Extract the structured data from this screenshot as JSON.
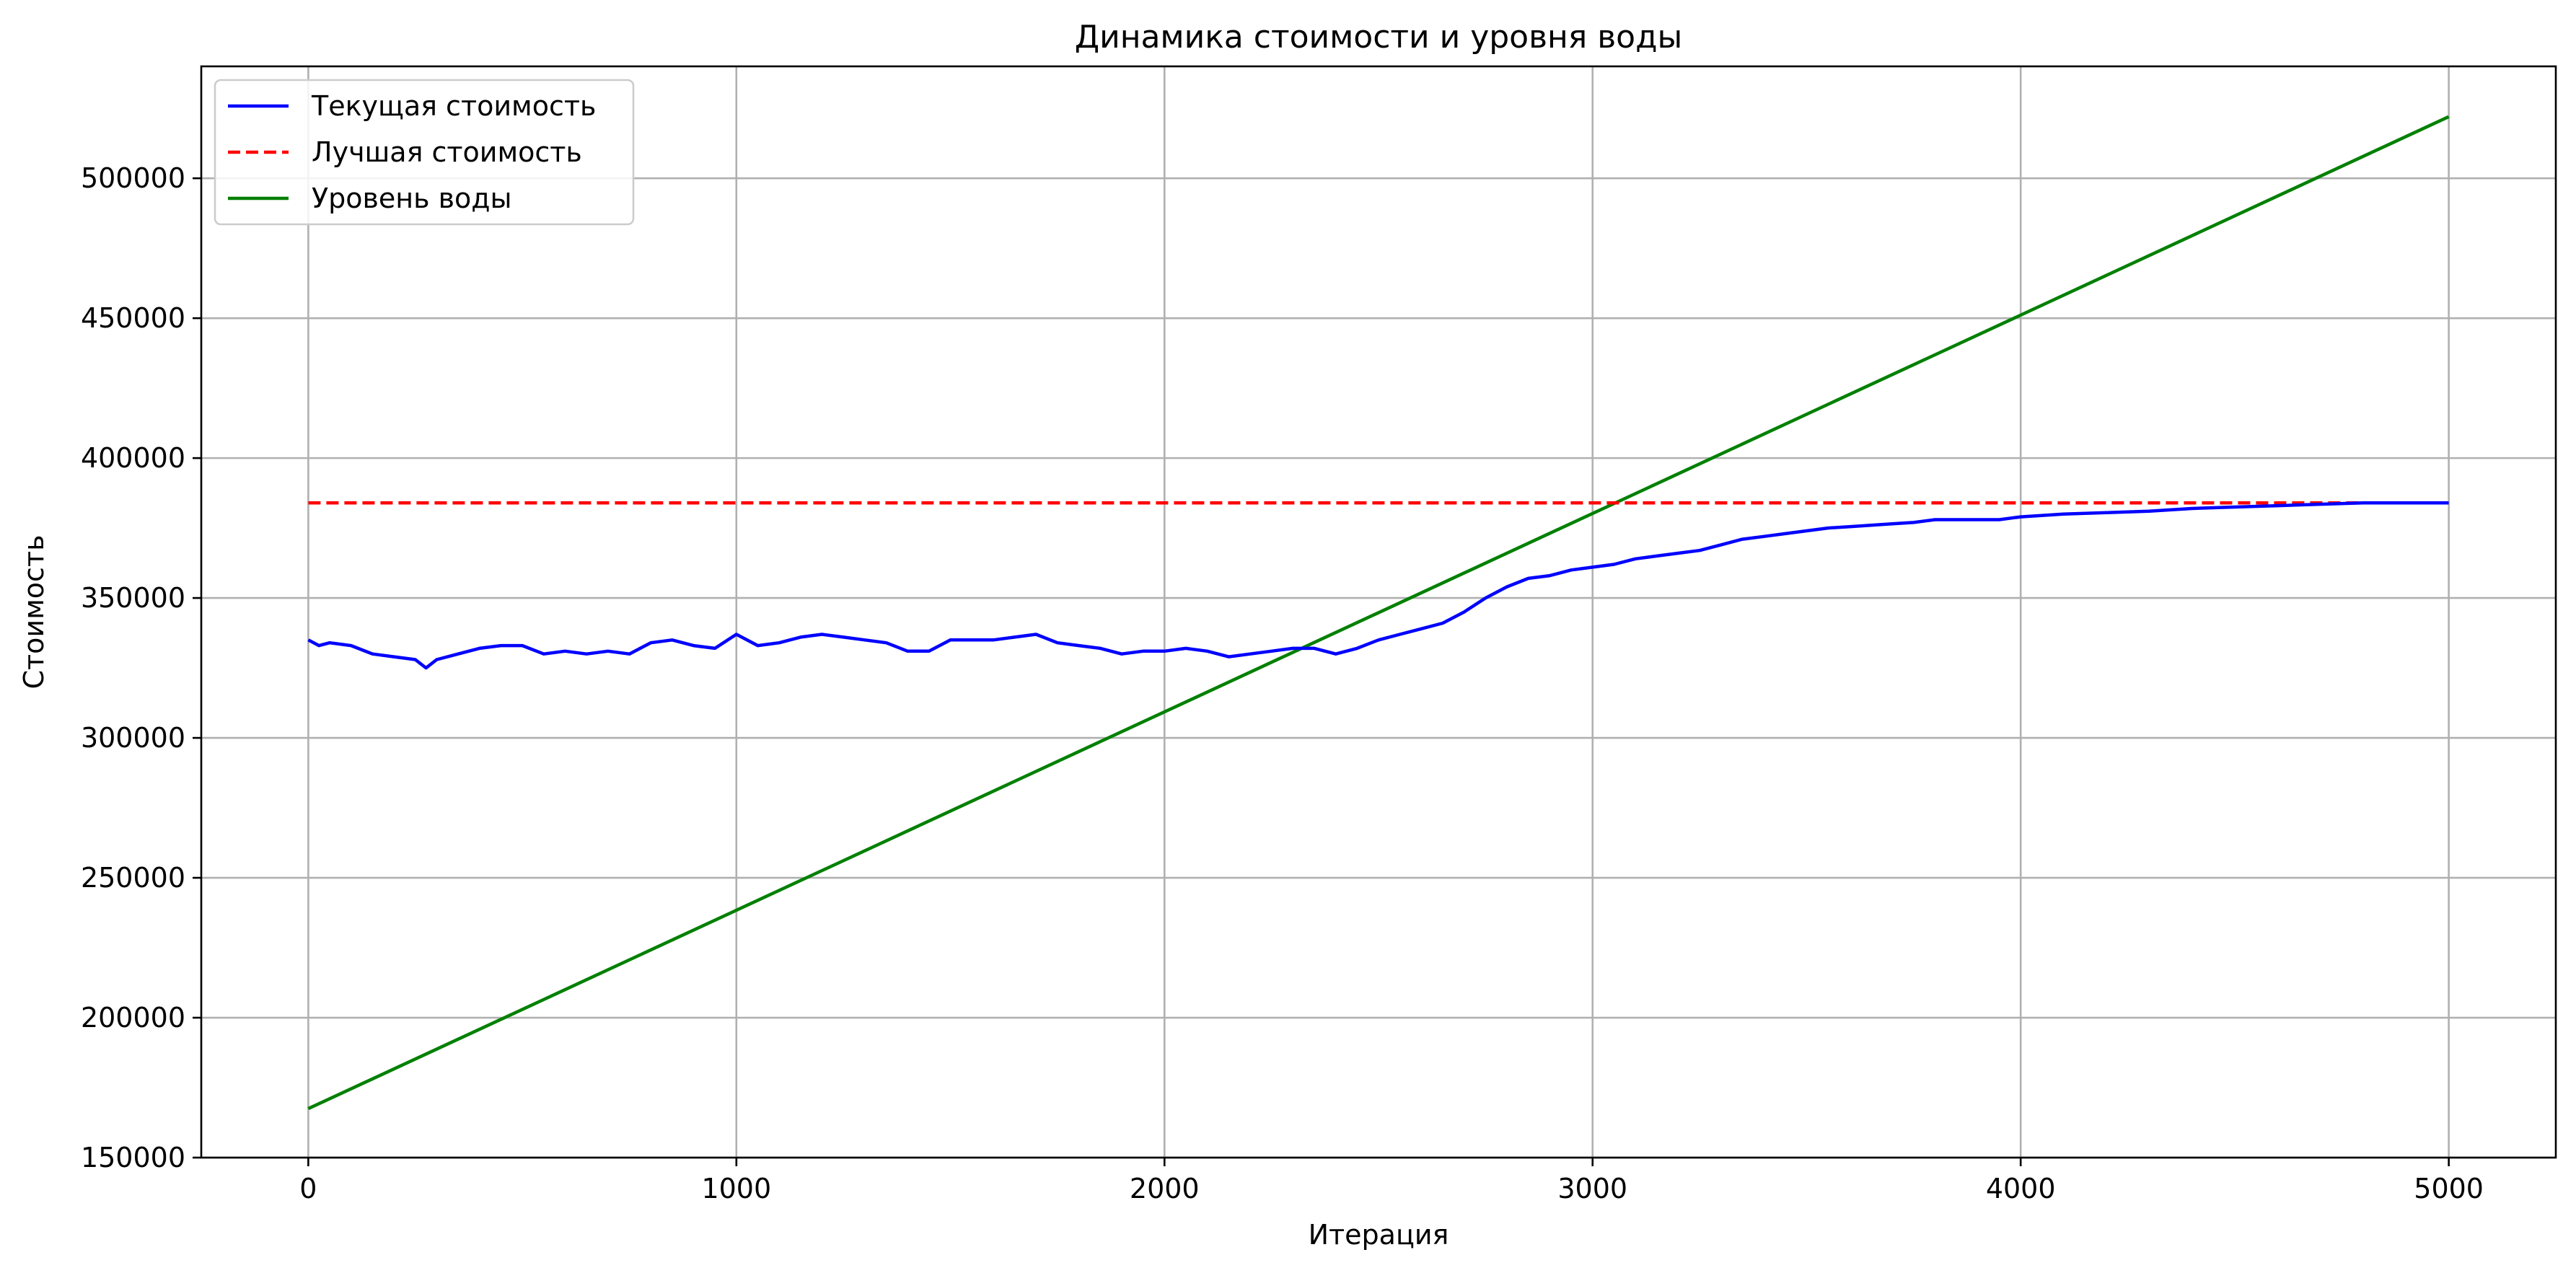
{
  "chart_data": {
    "type": "line",
    "title": "Динамика стоимости и уровня воды",
    "xlabel": "Итерация",
    "ylabel": "Стоимость",
    "xlim": [
      -250,
      5250
    ],
    "ylim": [
      150000,
      540000
    ],
    "xticks": [
      0,
      1000,
      2000,
      3000,
      4000,
      5000
    ],
    "xtick_labels": [
      "0",
      "1000",
      "2000",
      "3000",
      "4000",
      "5000"
    ],
    "yticks": [
      150000,
      200000,
      250000,
      300000,
      350000,
      400000,
      450000,
      500000
    ],
    "ytick_labels": [
      "150000",
      "200000",
      "250000",
      "300000",
      "350000",
      "400000",
      "450000",
      "500000"
    ],
    "grid": true,
    "legend_position": "upper-left",
    "series": [
      {
        "name": "Текущая стоимость",
        "color": "#0000ff",
        "style": "solid",
        "x": [
          0,
          25,
          50,
          100,
          150,
          200,
          250,
          275,
          300,
          350,
          400,
          450,
          500,
          550,
          600,
          650,
          700,
          750,
          800,
          850,
          900,
          950,
          1000,
          1050,
          1100,
          1150,
          1200,
          1250,
          1300,
          1350,
          1400,
          1450,
          1500,
          1550,
          1600,
          1650,
          1700,
          1750,
          1800,
          1850,
          1900,
          1950,
          2000,
          2050,
          2100,
          2150,
          2200,
          2250,
          2300,
          2350,
          2400,
          2450,
          2500,
          2550,
          2600,
          2650,
          2700,
          2750,
          2800,
          2850,
          2900,
          2950,
          3000,
          3050,
          3100,
          3150,
          3200,
          3250,
          3300,
          3350,
          3400,
          3450,
          3500,
          3550,
          3600,
          3650,
          3700,
          3750,
          3800,
          3850,
          3900,
          3950,
          4000,
          4100,
          4200,
          4300,
          4400,
          4500,
          4600,
          4700,
          4800,
          4900,
          5000
        ],
        "y": [
          335000,
          333000,
          334000,
          333000,
          330000,
          329000,
          328000,
          325000,
          328000,
          330000,
          332000,
          333000,
          333000,
          330000,
          331000,
          330000,
          331000,
          330000,
          334000,
          335000,
          333000,
          332000,
          337000,
          333000,
          334000,
          336000,
          337000,
          336000,
          335000,
          334000,
          331000,
          331000,
          335000,
          335000,
          335000,
          336000,
          337000,
          334000,
          333000,
          332000,
          330000,
          331000,
          331000,
          332000,
          331000,
          329000,
          330000,
          331000,
          332000,
          332000,
          330000,
          332000,
          335000,
          337000,
          339000,
          341000,
          345000,
          350000,
          354000,
          357000,
          358000,
          360000,
          361000,
          362000,
          364000,
          365000,
          366000,
          367000,
          369000,
          371000,
          372000,
          373000,
          374000,
          375000,
          375500,
          376000,
          376500,
          377000,
          378000,
          378000,
          378000,
          378000,
          379000,
          380000,
          380500,
          381000,
          382000,
          382500,
          383000,
          383500,
          384000,
          384000,
          384000
        ]
      },
      {
        "name": "Лучшая стоимость",
        "color": "#ff0000",
        "style": "dashed",
        "x": [
          0,
          5000
        ],
        "y": [
          384000,
          384000
        ]
      },
      {
        "name": "Уровень воды",
        "color": "#008000",
        "style": "solid",
        "x": [
          0,
          5000
        ],
        "y": [
          167500,
          522000
        ]
      }
    ]
  }
}
